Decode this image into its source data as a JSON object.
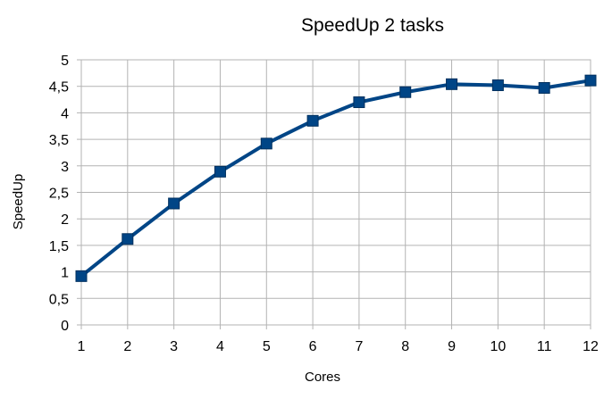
{
  "chart_data": {
    "type": "line",
    "title": "SpeedUp 2 tasks",
    "xlabel": "Cores",
    "ylabel": "SpeedUp",
    "x": [
      1,
      2,
      3,
      4,
      5,
      6,
      7,
      8,
      9,
      10,
      11,
      12
    ],
    "x_tick_labels": [
      "1",
      "2",
      "3",
      "4",
      "5",
      "6",
      "7",
      "8",
      "9",
      "10",
      "11",
      "12"
    ],
    "xlim": [
      1,
      12
    ],
    "ylim": [
      0,
      5
    ],
    "y_ticks": [
      0,
      0.5,
      1,
      1.5,
      2,
      2.5,
      3,
      3.5,
      4,
      4.5,
      5
    ],
    "y_tick_labels": [
      "0",
      "0,5",
      "1",
      "1,5",
      "2",
      "2,5",
      "3",
      "3,5",
      "4",
      "4,5",
      "5"
    ],
    "grid": true,
    "legend": "none",
    "series": [
      {
        "values": [
          0.92,
          1.62,
          2.29,
          2.89,
          3.42,
          3.85,
          4.2,
          4.39,
          4.54,
          4.52,
          4.47,
          4.61
        ],
        "color": "#004586",
        "marker": "square"
      }
    ]
  }
}
